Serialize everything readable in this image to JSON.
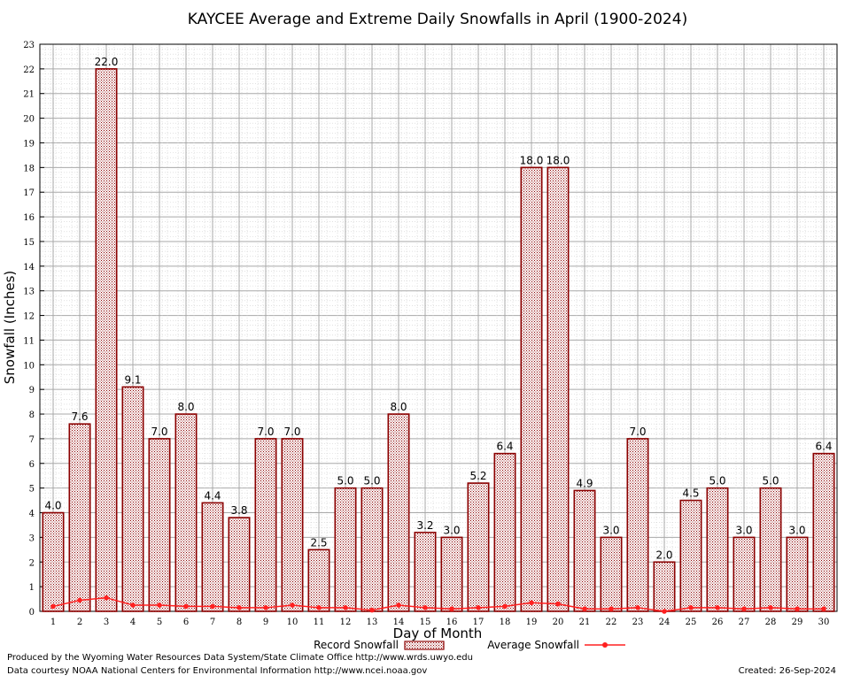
{
  "chart_data": {
    "type": "bar",
    "title": "KAYCEE Average and Extreme Daily Snowfalls in April (1900-2024)",
    "xlabel": "Day of Month",
    "ylabel": "Snowfall (Inches)",
    "ylim": [
      0,
      23
    ],
    "yticks": [
      0,
      1,
      2,
      3,
      4,
      5,
      6,
      7,
      8,
      9,
      10,
      11,
      12,
      13,
      14,
      15,
      16,
      17,
      18,
      19,
      20,
      21,
      22,
      23
    ],
    "categories": [
      "1",
      "2",
      "3",
      "4",
      "5",
      "6",
      "7",
      "8",
      "9",
      "10",
      "11",
      "12",
      "13",
      "14",
      "15",
      "16",
      "17",
      "18",
      "19",
      "20",
      "21",
      "22",
      "23",
      "24",
      "25",
      "26",
      "27",
      "28",
      "29",
      "30"
    ],
    "series": [
      {
        "name": "Record Snowfall",
        "kind": "bar",
        "color": "#8b0000",
        "values": [
          4.0,
          7.6,
          22.0,
          9.1,
          7.0,
          8.0,
          4.4,
          3.8,
          7.0,
          7.0,
          2.5,
          5.0,
          5.0,
          8.0,
          3.2,
          3.0,
          5.2,
          6.4,
          18.0,
          18.0,
          4.9,
          3.0,
          7.0,
          2.0,
          4.5,
          5.0,
          3.0,
          5.0,
          3.0,
          6.4
        ],
        "labels": [
          "4.0",
          "7.6",
          "22.0",
          "9.1",
          "7.0",
          "8.0",
          "4.4",
          "3.8",
          "7.0",
          "7.0",
          "2.5",
          "5.0",
          "5.0",
          "8.0",
          "3.2",
          "3.0",
          "5.2",
          "6.4",
          "18.0",
          "18.0",
          "4.9",
          "3.0",
          "7.0",
          "2.0",
          "4.5",
          "5.0",
          "3.0",
          "5.0",
          "3.0",
          "6.4"
        ]
      },
      {
        "name": "Average Snowfall",
        "kind": "line",
        "color": "#ff2020",
        "values": [
          0.2,
          0.45,
          0.55,
          0.25,
          0.25,
          0.2,
          0.2,
          0.15,
          0.15,
          0.25,
          0.15,
          0.15,
          0.05,
          0.25,
          0.15,
          0.1,
          0.15,
          0.2,
          0.35,
          0.3,
          0.1,
          0.1,
          0.15,
          0.0,
          0.15,
          0.15,
          0.1,
          0.15,
          0.1,
          0.1
        ]
      }
    ],
    "grid": true,
    "legend": "bottom-center"
  },
  "footer": {
    "produced_by": "Produced by the Wyoming Water Resources Data System/State Climate Office http://www.wrds.uwyo.edu",
    "data_courtesy": "Data courtesy NOAA National Centers for Environmental Information http://www.ncei.noaa.gov",
    "created": "Created:  26-Sep-2024"
  }
}
